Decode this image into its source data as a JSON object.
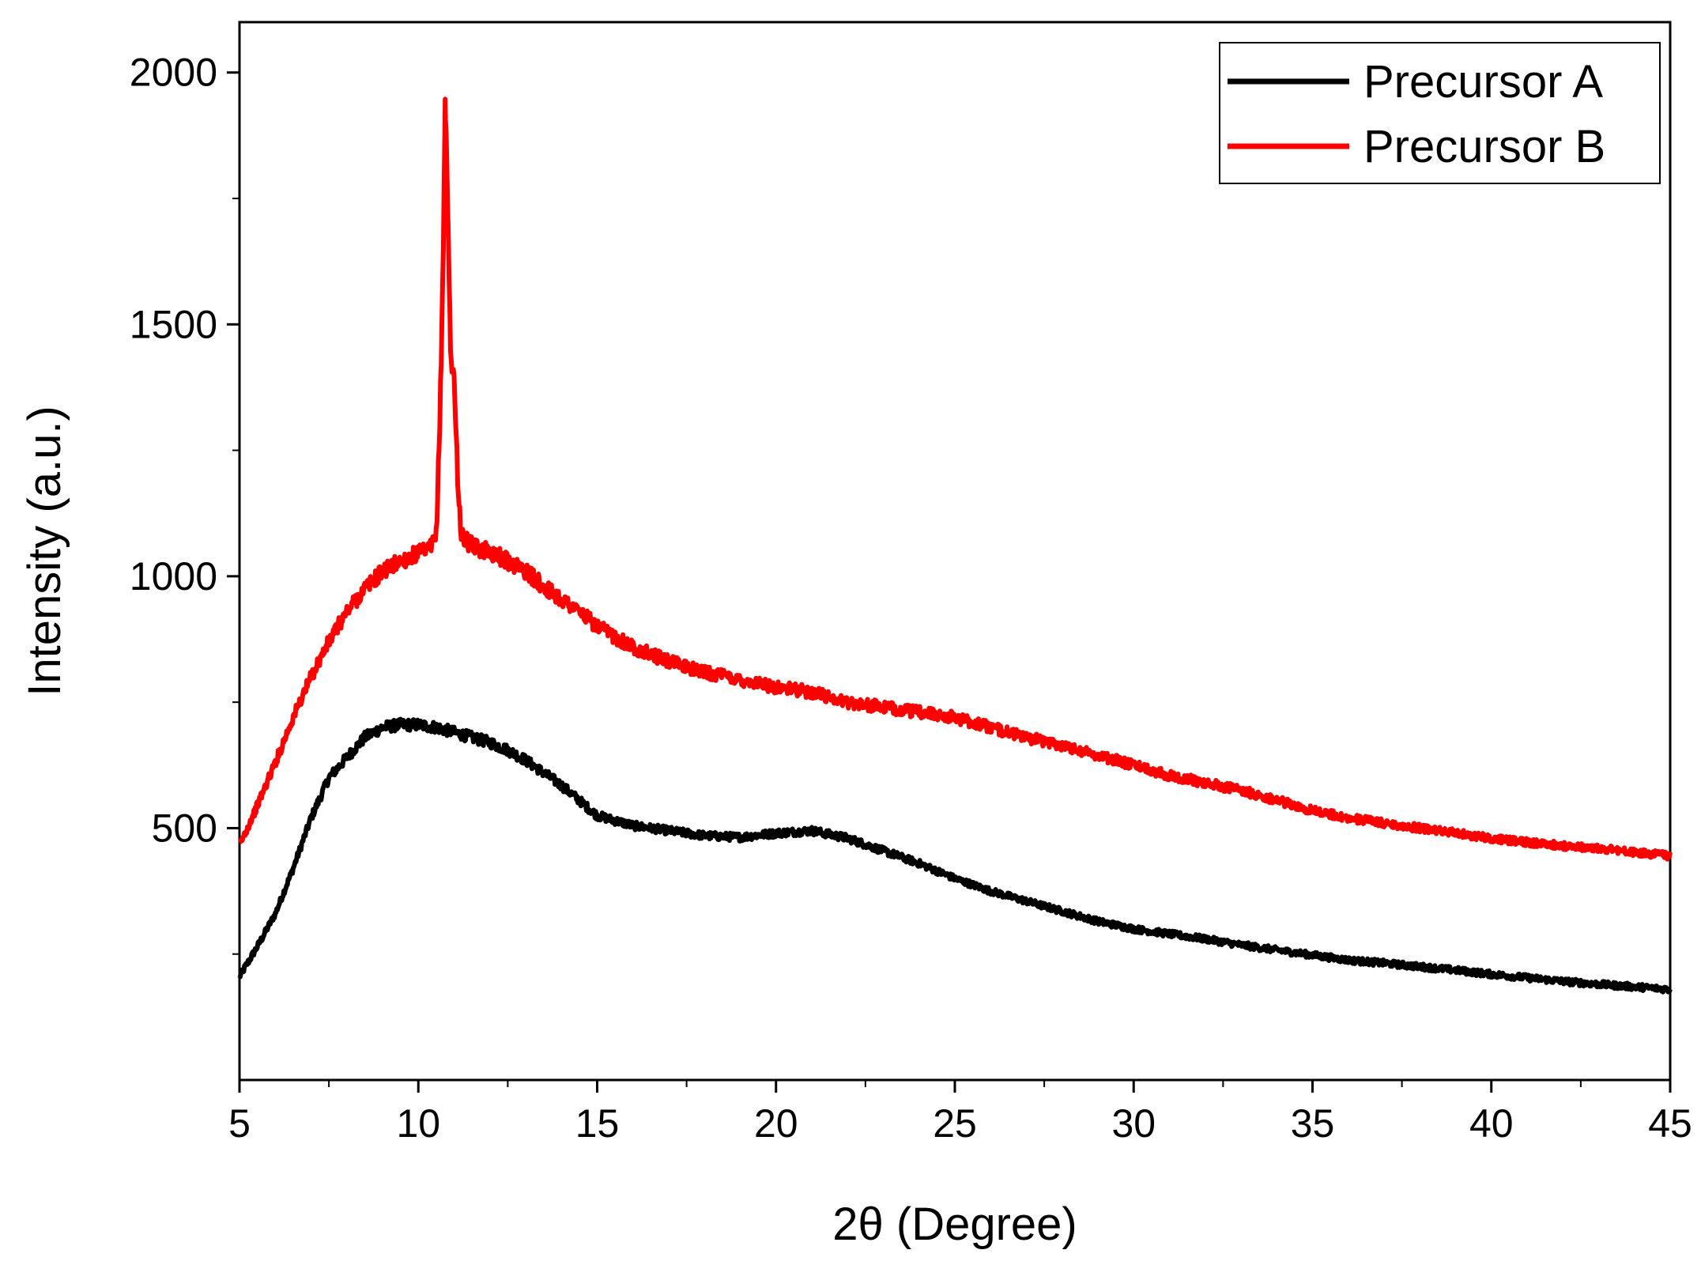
{
  "chart_data": {
    "type": "line",
    "title": "",
    "xlabel": "2θ (Degree)",
    "ylabel": "Intensity (a.u.)",
    "xlim": [
      5,
      45
    ],
    "ylim": [
      0,
      2100
    ],
    "x_ticks": [
      5,
      10,
      15,
      20,
      25,
      30,
      35,
      40,
      45
    ],
    "y_ticks": [
      500,
      1000,
      1500,
      2000
    ],
    "grid": false,
    "legend_position": "top-right",
    "series": [
      {
        "name": "Precursor A",
        "color": "#000000",
        "points": [
          [
            5,
            205
          ],
          [
            5.5,
            265
          ],
          [
            6,
            330
          ],
          [
            6.5,
            420
          ],
          [
            7,
            520
          ],
          [
            7.5,
            600
          ],
          [
            8,
            640
          ],
          [
            8.5,
            680
          ],
          [
            9,
            700
          ],
          [
            9.5,
            705
          ],
          [
            10,
            705
          ],
          [
            10.5,
            700
          ],
          [
            11,
            690
          ],
          [
            11.5,
            680
          ],
          [
            12,
            670
          ],
          [
            12.5,
            655
          ],
          [
            13,
            635
          ],
          [
            13.5,
            610
          ],
          [
            14,
            585
          ],
          [
            14.5,
            555
          ],
          [
            15,
            525
          ],
          [
            16,
            505
          ],
          [
            17,
            495
          ],
          [
            18,
            485
          ],
          [
            19,
            482
          ],
          [
            20,
            490
          ],
          [
            21,
            495
          ],
          [
            22,
            480
          ],
          [
            23,
            455
          ],
          [
            24,
            430
          ],
          [
            25,
            400
          ],
          [
            26,
            375
          ],
          [
            27,
            355
          ],
          [
            28,
            335
          ],
          [
            29,
            315
          ],
          [
            30,
            300
          ],
          [
            31,
            290
          ],
          [
            32,
            280
          ],
          [
            33,
            268
          ],
          [
            34,
            258
          ],
          [
            35,
            248
          ],
          [
            36,
            238
          ],
          [
            37,
            232
          ],
          [
            38,
            225
          ],
          [
            39,
            218
          ],
          [
            40,
            210
          ],
          [
            41,
            203
          ],
          [
            42,
            196
          ],
          [
            43,
            190
          ],
          [
            44,
            185
          ],
          [
            45,
            180
          ]
        ]
      },
      {
        "name": "Precursor B",
        "color": "#ff0000",
        "points": [
          [
            5,
            465
          ],
          [
            5.5,
            545
          ],
          [
            6,
            630
          ],
          [
            6.5,
            720
          ],
          [
            7,
            800
          ],
          [
            7.5,
            870
          ],
          [
            8,
            930
          ],
          [
            8.5,
            975
          ],
          [
            9,
            1010
          ],
          [
            9.5,
            1030
          ],
          [
            10,
            1045
          ],
          [
            10.3,
            1050
          ],
          [
            10.5,
            1080
          ],
          [
            10.6,
            1300
          ],
          [
            10.7,
            1650
          ],
          [
            10.75,
            1950
          ],
          [
            10.8,
            1800
          ],
          [
            10.9,
            1450
          ],
          [
            11.0,
            1390
          ],
          [
            11.1,
            1200
          ],
          [
            11.2,
            1080
          ],
          [
            11.5,
            1060
          ],
          [
            12,
            1050
          ],
          [
            12.5,
            1030
          ],
          [
            13,
            1010
          ],
          [
            13.5,
            980
          ],
          [
            14,
            955
          ],
          [
            14.5,
            930
          ],
          [
            15,
            900
          ],
          [
            16,
            860
          ],
          [
            17,
            830
          ],
          [
            18,
            810
          ],
          [
            19,
            795
          ],
          [
            20,
            780
          ],
          [
            21,
            770
          ],
          [
            22,
            750
          ],
          [
            23,
            740
          ],
          [
            24,
            730
          ],
          [
            25,
            720
          ],
          [
            26,
            700
          ],
          [
            27,
            680
          ],
          [
            28,
            665
          ],
          [
            29,
            645
          ],
          [
            30,
            625
          ],
          [
            31,
            605
          ],
          [
            32,
            590
          ],
          [
            33,
            575
          ],
          [
            34,
            555
          ],
          [
            35,
            535
          ],
          [
            36,
            520
          ],
          [
            37,
            510
          ],
          [
            38,
            500
          ],
          [
            39,
            490
          ],
          [
            40,
            480
          ],
          [
            41,
            472
          ],
          [
            42,
            465
          ],
          [
            43,
            460
          ],
          [
            44,
            452
          ],
          [
            45,
            445
          ]
        ]
      }
    ]
  }
}
